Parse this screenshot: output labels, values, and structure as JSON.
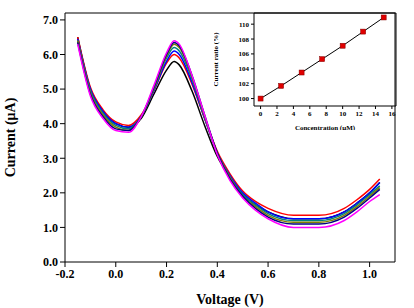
{
  "chart_data": [
    {
      "type": "line",
      "xlabel": "Voltage (V)",
      "ylabel": "Current (μA)",
      "x": [
        -0.15,
        -0.1,
        -0.05,
        0.0,
        0.05,
        0.1,
        0.15,
        0.2,
        0.23,
        0.25,
        0.3,
        0.35,
        0.4,
        0.45,
        0.5,
        0.55,
        0.6,
        0.7,
        0.8,
        0.9,
        0.95,
        1.0,
        1.04
      ],
      "series": [
        {
          "color": "#000000",
          "values": [
            6.5,
            5.0,
            4.35,
            4.0,
            3.9,
            4.15,
            4.85,
            5.55,
            5.8,
            5.7,
            4.95,
            3.95,
            3.05,
            2.45,
            1.95,
            1.65,
            1.45,
            1.25,
            1.25,
            1.45,
            1.7,
            2.0,
            2.3
          ]
        },
        {
          "color": "#ff0000",
          "values": [
            6.5,
            5.05,
            4.4,
            4.05,
            3.95,
            4.25,
            4.95,
            5.75,
            6.0,
            5.9,
            5.15,
            4.15,
            3.2,
            2.55,
            2.05,
            1.75,
            1.55,
            1.35,
            1.35,
            1.55,
            1.8,
            2.1,
            2.4
          ]
        },
        {
          "color": "#0000ff",
          "values": [
            6.45,
            5.0,
            4.35,
            4.0,
            3.9,
            4.2,
            4.95,
            5.8,
            6.1,
            6.0,
            5.2,
            4.15,
            3.15,
            2.5,
            2.0,
            1.7,
            1.45,
            1.25,
            1.25,
            1.45,
            1.7,
            2.0,
            2.3
          ]
        },
        {
          "color": "#008080",
          "values": [
            6.4,
            4.95,
            4.3,
            3.95,
            3.85,
            4.2,
            5.0,
            5.9,
            6.2,
            6.1,
            5.3,
            4.2,
            3.15,
            2.45,
            1.95,
            1.65,
            1.4,
            1.2,
            1.2,
            1.4,
            1.65,
            1.95,
            2.2
          ]
        },
        {
          "color": "#808000",
          "values": [
            6.4,
            4.9,
            4.25,
            3.9,
            3.8,
            4.2,
            5.0,
            5.95,
            6.3,
            6.2,
            5.35,
            4.2,
            3.15,
            2.45,
            1.9,
            1.6,
            1.35,
            1.15,
            1.15,
            1.35,
            1.6,
            1.9,
            2.15
          ]
        },
        {
          "color": "#000080",
          "values": [
            6.35,
            4.85,
            4.2,
            3.85,
            3.8,
            4.2,
            5.05,
            6.0,
            6.35,
            6.25,
            5.4,
            4.25,
            3.15,
            2.4,
            1.9,
            1.55,
            1.3,
            1.1,
            1.1,
            1.3,
            1.55,
            1.85,
            2.1
          ]
        },
        {
          "color": "#ff00ff",
          "values": [
            6.3,
            4.8,
            4.15,
            3.8,
            3.75,
            4.2,
            5.1,
            6.05,
            6.4,
            6.3,
            5.4,
            4.25,
            3.1,
            2.35,
            1.85,
            1.5,
            1.25,
            1.0,
            1.0,
            1.2,
            1.45,
            1.75,
            1.95
          ]
        }
      ],
      "xlim": [
        -0.2,
        1.1
      ],
      "xticks": [
        {
          "value": -0.2,
          "label": "-0.2"
        },
        {
          "value": 0.0,
          "label": "0.0"
        },
        {
          "value": 0.2,
          "label": "0.2"
        },
        {
          "value": 0.4,
          "label": "0.4"
        },
        {
          "value": 0.6,
          "label": "0.6"
        },
        {
          "value": 0.8,
          "label": "0.8"
        },
        {
          "value": 1.0,
          "label": "1.0"
        }
      ],
      "ylim": [
        0,
        7.2
      ],
      "yticks": [
        {
          "value": 0,
          "label": "0.0"
        },
        {
          "value": 1,
          "label": "1.0"
        },
        {
          "value": 2,
          "label": "2.0"
        },
        {
          "value": 3,
          "label": "3.0"
        },
        {
          "value": 4,
          "label": "4.0"
        },
        {
          "value": 5,
          "label": "5.0"
        },
        {
          "value": 6,
          "label": "6.0"
        },
        {
          "value": 7,
          "label": "7.0"
        }
      ]
    },
    {
      "type": "line",
      "xlabel": "Concentration (μM)",
      "ylabel": "Current ratio (%)",
      "x": [
        0,
        2.5,
        5,
        7.5,
        10,
        12.5,
        15
      ],
      "series": [
        {
          "color": "#000000",
          "marker": "square",
          "values": [
            100,
            101.7,
            103.5,
            105.3,
            107.1,
            109.0,
            110.9
          ]
        }
      ],
      "xlim": [
        -0.8,
        16.5
      ],
      "xticks": [
        0,
        2,
        4,
        6,
        8,
        10,
        12,
        14,
        16
      ],
      "ylim": [
        99,
        111.5
      ],
      "yticks": [
        100,
        102,
        104,
        106,
        108,
        110
      ]
    }
  ]
}
